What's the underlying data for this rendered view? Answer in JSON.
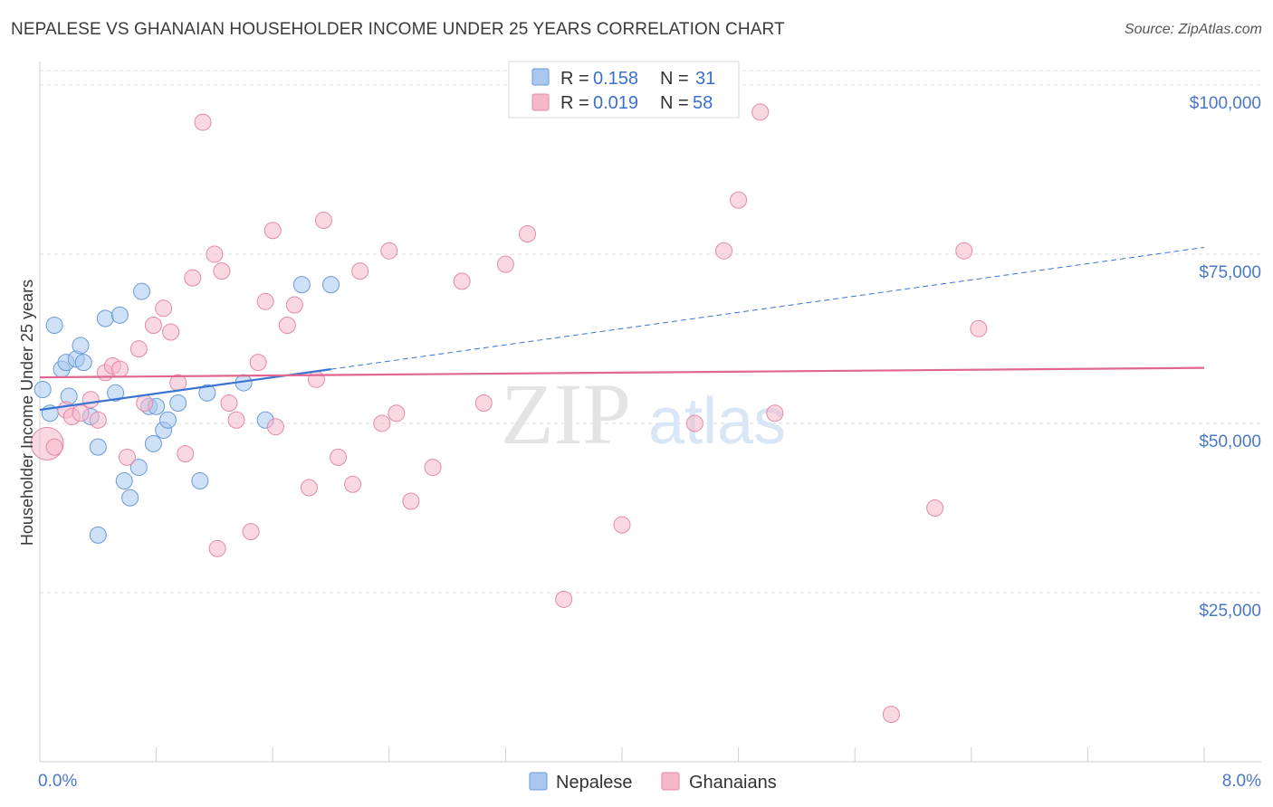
{
  "header": {
    "title": "NEPALESE VS GHANAIAN HOUSEHOLDER INCOME UNDER 25 YEARS CORRELATION CHART",
    "source": "Source: ZipAtlas.com"
  },
  "watermark": {
    "zip": "ZIP",
    "atlas": "atlas"
  },
  "legend": {
    "r_label": "R =",
    "n_label": "N =",
    "series": [
      {
        "name": "Nepalese",
        "r": "0.158",
        "n": "31",
        "color": "#a8c8f0"
      },
      {
        "name": "Ghanaians",
        "r": "0.019",
        "n": "58",
        "color": "#f5b8cb"
      }
    ]
  },
  "chart_data": {
    "type": "scatter",
    "title": "NEPALESE VS GHANAIAN HOUSEHOLDER INCOME UNDER 25 YEARS CORRELATION CHART",
    "xlabel": "",
    "ylabel": "Householder Income Under 25 years",
    "xlim": [
      0,
      8
    ],
    "ylim": [
      0,
      104000
    ],
    "x_tick_labels": [
      "0.0%",
      "8.0%"
    ],
    "y_ticks": [
      25000,
      50000,
      75000,
      100000
    ],
    "y_tick_labels": [
      "$25,000",
      "$50,000",
      "$75,000",
      "$100,000"
    ],
    "series": [
      {
        "name": "Nepalese",
        "color": "#a8c8f0",
        "stroke": "#6a9ad8",
        "trend": {
          "x0": 0.0,
          "y0": 52000,
          "x1": 2.0,
          "y1": 58000,
          "dash_to_x": 8.0,
          "dash_to_y": 76000,
          "color": "#3a74d0"
        },
        "points": [
          [
            0.02,
            55000
          ],
          [
            0.07,
            51500
          ],
          [
            0.1,
            64500
          ],
          [
            0.15,
            58000
          ],
          [
            0.18,
            59000
          ],
          [
            0.2,
            54000
          ],
          [
            0.25,
            59500
          ],
          [
            0.28,
            61500
          ],
          [
            0.3,
            59000
          ],
          [
            0.35,
            51000
          ],
          [
            0.4,
            46500
          ],
          [
            0.45,
            65500
          ],
          [
            0.52,
            54500
          ],
          [
            0.55,
            66000
          ],
          [
            0.58,
            41500
          ],
          [
            0.62,
            39000
          ],
          [
            0.68,
            43500
          ],
          [
            0.7,
            69500
          ],
          [
            0.75,
            52500
          ],
          [
            0.78,
            47000
          ],
          [
            0.8,
            52500
          ],
          [
            0.85,
            49000
          ],
          [
            0.88,
            50500
          ],
          [
            0.95,
            53000
          ],
          [
            1.1,
            41500
          ],
          [
            1.15,
            54500
          ],
          [
            1.4,
            56000
          ],
          [
            1.55,
            50500
          ],
          [
            1.8,
            70500
          ],
          [
            2.0,
            70500
          ],
          [
            0.4,
            33500
          ]
        ]
      },
      {
        "name": "Ghanaians",
        "color": "#f5b8cb",
        "stroke": "#e48aa8",
        "trend": {
          "x0": 0.0,
          "y0": 56800,
          "x1": 8.0,
          "y1": 58200,
          "color": "#e0678f"
        },
        "points": [
          [
            0.05,
            47000
          ],
          [
            0.1,
            46500
          ],
          [
            0.18,
            52000
          ],
          [
            0.22,
            51000
          ],
          [
            0.28,
            51500
          ],
          [
            0.35,
            53500
          ],
          [
            0.4,
            50500
          ],
          [
            0.45,
            57500
          ],
          [
            0.5,
            58500
          ],
          [
            0.55,
            58000
          ],
          [
            0.6,
            45000
          ],
          [
            0.68,
            61000
          ],
          [
            0.72,
            53000
          ],
          [
            0.78,
            64500
          ],
          [
            0.85,
            67000
          ],
          [
            0.9,
            63500
          ],
          [
            0.95,
            56000
          ],
          [
            1.0,
            45500
          ],
          [
            1.05,
            71500
          ],
          [
            1.12,
            94500
          ],
          [
            1.2,
            75000
          ],
          [
            1.25,
            72500
          ],
          [
            1.3,
            53000
          ],
          [
            1.35,
            50500
          ],
          [
            1.45,
            34000
          ],
          [
            1.5,
            59000
          ],
          [
            1.55,
            68000
          ],
          [
            1.6,
            78500
          ],
          [
            1.62,
            49500
          ],
          [
            1.7,
            64500
          ],
          [
            1.75,
            67500
          ],
          [
            1.85,
            40500
          ],
          [
            1.9,
            56500
          ],
          [
            1.95,
            80000
          ],
          [
            2.05,
            45000
          ],
          [
            2.15,
            41000
          ],
          [
            2.2,
            72500
          ],
          [
            2.35,
            50000
          ],
          [
            2.4,
            75500
          ],
          [
            2.45,
            51500
          ],
          [
            2.55,
            38500
          ],
          [
            2.7,
            43500
          ],
          [
            2.9,
            71000
          ],
          [
            3.05,
            53000
          ],
          [
            3.2,
            73500
          ],
          [
            3.35,
            78000
          ],
          [
            3.6,
            24000
          ],
          [
            4.0,
            35000
          ],
          [
            4.5,
            50000
          ],
          [
            4.7,
            75500
          ],
          [
            4.8,
            83000
          ],
          [
            4.95,
            96000
          ],
          [
            5.05,
            51500
          ],
          [
            5.85,
            7000
          ],
          [
            6.15,
            37500
          ],
          [
            6.35,
            75500
          ],
          [
            6.45,
            64000
          ],
          [
            1.22,
            31500
          ]
        ]
      }
    ]
  }
}
